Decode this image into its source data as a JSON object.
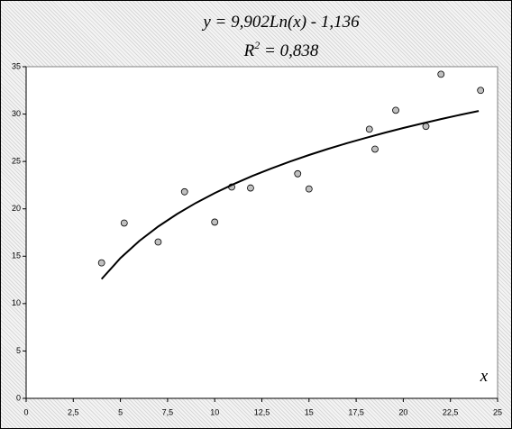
{
  "chart_data": {
    "type": "scatter",
    "title": "y = 9,902Ln(x) - 1,136",
    "subtitle": {
      "base": "R",
      "superscript": "2",
      "rest": " = 0,838"
    },
    "x_label": "x",
    "xlim": [
      0,
      25
    ],
    "xticks": [
      0,
      {
        "value": 2.5,
        "label": "2,5"
      },
      5,
      {
        "value": 7.5,
        "label": "7,5"
      },
      10,
      {
        "value": 12.5,
        "label": "12,5"
      },
      15,
      {
        "value": 17.5,
        "label": "17,5"
      },
      20,
      {
        "value": 22.5,
        "label": "22,5"
      },
      25
    ],
    "ylim": [
      0,
      35
    ],
    "yticks": [
      0,
      5,
      10,
      15,
      20,
      25,
      30,
      35
    ],
    "series": [
      {
        "mode": "markers",
        "color": "#c0c0c0",
        "x": [
          4.0,
          5.2,
          7.0,
          8.4,
          10.0,
          10.9,
          11.9,
          14.4,
          15.0,
          18.2,
          18.5,
          19.6,
          21.2,
          22.0,
          24.1
        ],
        "values": [
          14.3,
          18.5,
          16.5,
          21.8,
          18.6,
          22.3,
          22.2,
          23.7,
          22.1,
          28.4,
          26.3,
          30.4,
          28.7,
          34.2,
          32.5
        ]
      },
      {
        "mode": "line",
        "color": "#000000",
        "x": [
          4,
          5,
          6,
          7,
          8,
          9,
          10,
          11,
          12,
          13,
          14,
          15,
          16,
          17,
          18,
          19,
          20,
          21,
          22,
          23,
          24
        ],
        "values": [
          12.59,
          14.8,
          16.61,
          18.13,
          19.45,
          20.62,
          21.66,
          22.61,
          23.47,
          24.26,
          25.0,
          25.68,
          26.32,
          26.92,
          27.48,
          28.02,
          28.53,
          29.01,
          29.47,
          29.91,
          30.33
        ]
      }
    ]
  }
}
